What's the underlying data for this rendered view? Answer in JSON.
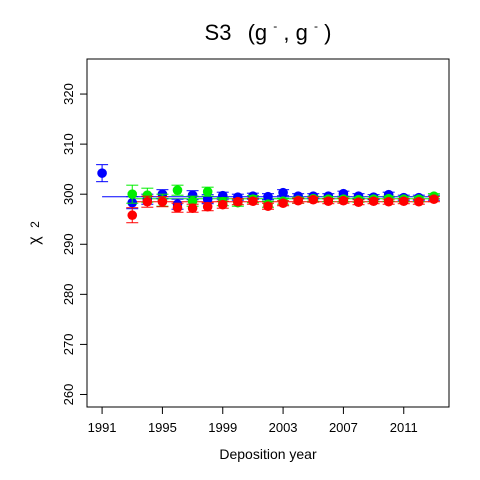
{
  "chart_data": {
    "type": "scatter",
    "title_main": "S3",
    "title_args": "(g",
    "title_sep": ", g",
    "title_close": ")",
    "title_sup": "-",
    "xlabel": "Deposition year",
    "ylabel_base": "χ",
    "ylabel_sup": "2",
    "xlim": [
      1990,
      2014
    ],
    "ylim": [
      257.5,
      327
    ],
    "xticks": [
      1991,
      1995,
      1999,
      2003,
      2007,
      2011
    ],
    "yticks": [
      260,
      270,
      280,
      290,
      300,
      310,
      320
    ],
    "grid": false,
    "series": [
      {
        "color": "#0000ff",
        "x": [
          1991,
          1993,
          1994,
          1995,
          1996,
          1997,
          1998,
          1999,
          2000,
          2001,
          2002,
          2003,
          2004,
          2005,
          2006,
          2007,
          2008,
          2009,
          2010,
          2011,
          2012,
          2013
        ],
        "y": [
          304.2,
          298.3,
          299.0,
          300.0,
          298.0,
          299.8,
          299.0,
          299.7,
          299.4,
          299.6,
          299.5,
          300.3,
          299.6,
          299.6,
          299.6,
          300.1,
          299.6,
          299.4,
          299.9,
          299.3,
          299.3,
          299.3
        ],
        "err": [
          1.7,
          1.2,
          1.0,
          0.9,
          1.0,
          0.9,
          0.9,
          0.7,
          0.6,
          0.6,
          0.6,
          0.6,
          0.5,
          0.5,
          0.5,
          0.5,
          0.5,
          0.5,
          0.5,
          0.5,
          0.5,
          0.5
        ],
        "fit_y": 299.5
      },
      {
        "color": "#00ee00",
        "x": [
          1993,
          1994,
          1995,
          1996,
          1997,
          1998,
          1999,
          2000,
          2001,
          2002,
          2003,
          2004,
          2005,
          2006,
          2007,
          2008,
          2009,
          2010,
          2011,
          2012,
          2013
        ],
        "y": [
          300.0,
          299.8,
          298.8,
          300.8,
          298.6,
          300.5,
          298.5,
          298.3,
          299.0,
          298.0,
          298.6,
          298.8,
          299.1,
          299.0,
          299.0,
          298.9,
          299.0,
          299.1,
          299.0,
          299.0,
          299.6
        ],
        "err": [
          1.8,
          1.4,
          1.2,
          1.0,
          1.0,
          0.9,
          0.8,
          0.7,
          0.7,
          0.6,
          0.6,
          0.6,
          0.5,
          0.5,
          0.5,
          0.5,
          0.5,
          0.5,
          0.5,
          0.5,
          0.5
        ],
        "fit_y": 299.1
      },
      {
        "color": "#ff0000",
        "x": [
          1993,
          1994,
          1995,
          1996,
          1997,
          1998,
          1999,
          2000,
          2001,
          2002,
          2003,
          2004,
          2005,
          2006,
          2007,
          2008,
          2009,
          2010,
          2011,
          2012,
          2013
        ],
        "y": [
          295.8,
          298.5,
          298.5,
          297.3,
          297.2,
          297.5,
          297.9,
          298.5,
          298.6,
          297.6,
          298.2,
          298.7,
          298.9,
          298.6,
          298.7,
          298.4,
          298.6,
          298.5,
          298.6,
          298.5,
          299.0
        ],
        "err": [
          1.5,
          1.1,
          1.0,
          0.9,
          0.8,
          0.8,
          0.7,
          0.6,
          0.6,
          0.6,
          0.5,
          0.5,
          0.5,
          0.5,
          0.5,
          0.5,
          0.5,
          0.5,
          0.5,
          0.5,
          0.5
        ],
        "fit_y": 298.5
      }
    ]
  }
}
